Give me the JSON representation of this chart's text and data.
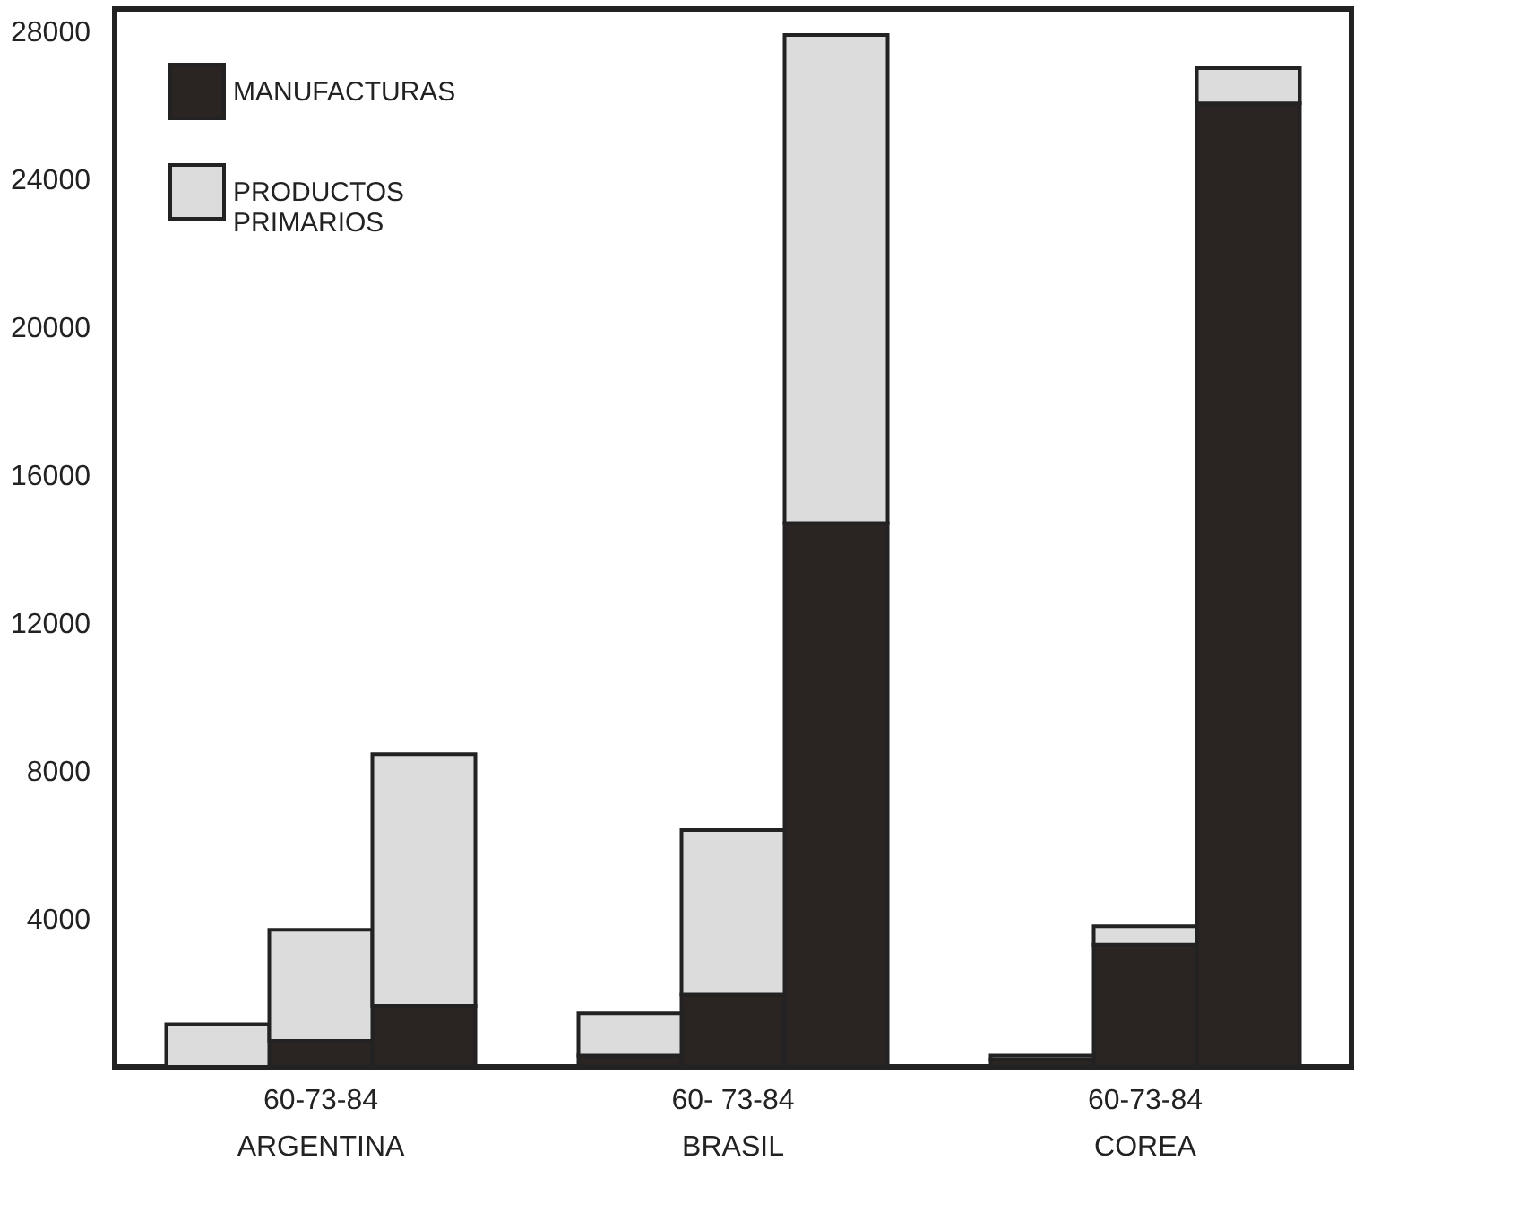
{
  "chart_data": {
    "type": "bar",
    "stacked": true,
    "categories": [
      null,
      "60-73-84\nARGENTINA",
      null,
      null,
      null,
      "60- 73-84\nBRASIL",
      null,
      null,
      null,
      "60-73-84\nCOREA",
      null
    ],
    "series": [
      {
        "name": "MANUFACTURAS",
        "color": "#2a2523",
        "values": [
          null,
          700,
          1650,
          null,
          300,
          1950,
          14700,
          null,
          200,
          3300,
          26050
        ]
      },
      {
        "name": "PRODUCTOS PRIMARIOS",
        "color": "#dcdcdc",
        "values": [
          1150,
          3000,
          6800,
          null,
          1150,
          4450,
          13200,
          null,
          100,
          500,
          950
        ]
      }
    ],
    "ylim": [
      0,
      28600
    ],
    "yticks": [
      4000,
      8000,
      12000,
      16000,
      20000,
      24000,
      28000
    ],
    "grid": false,
    "legend": "top left"
  }
}
